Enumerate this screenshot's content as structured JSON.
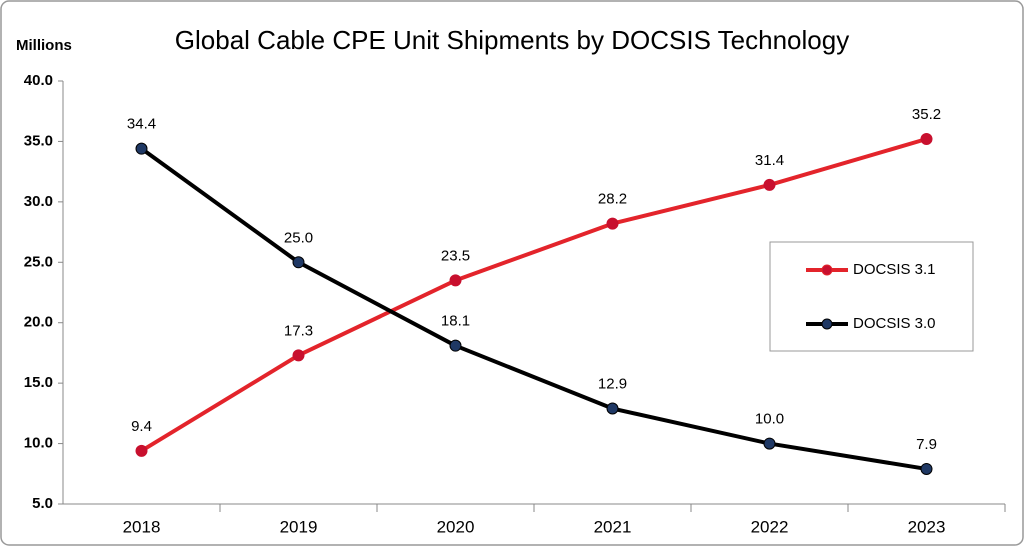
{
  "chart_data": {
    "type": "line",
    "title": "Global Cable CPE Unit Shipments by DOCSIS Technology",
    "y_label": "Millions",
    "categories": [
      "2018",
      "2019",
      "2020",
      "2021",
      "2022",
      "2023"
    ],
    "series": [
      {
        "name": "DOCSIS 3.1",
        "color": "#e3242b",
        "marker_color": "#c8102e",
        "values": [
          9.4,
          17.3,
          23.5,
          28.2,
          31.4,
          35.2
        ],
        "value_labels": [
          "9.4",
          "17.3",
          "23.5",
          "28.2",
          "31.4",
          "35.2"
        ]
      },
      {
        "name": "DOCSIS 3.0",
        "color": "#000000",
        "marker_color": "#1f3864",
        "values": [
          34.4,
          25.0,
          18.1,
          12.9,
          10.0,
          7.9
        ],
        "value_labels": [
          "34.4",
          "25.0",
          "18.1",
          "12.9",
          "10.0",
          "7.9"
        ]
      }
    ],
    "ylim": [
      5,
      40
    ],
    "yticks": [
      {
        "value": 5,
        "label": "5.0"
      },
      {
        "value": 10,
        "label": "10.0"
      },
      {
        "value": 15,
        "label": "15.0"
      },
      {
        "value": 20,
        "label": "20.0"
      },
      {
        "value": 25,
        "label": "25.0"
      },
      {
        "value": 30,
        "label": "30.0"
      },
      {
        "value": 35,
        "label": "35.0"
      },
      {
        "value": 40,
        "label": "40.0"
      }
    ],
    "grid": false,
    "legend": "right"
  }
}
